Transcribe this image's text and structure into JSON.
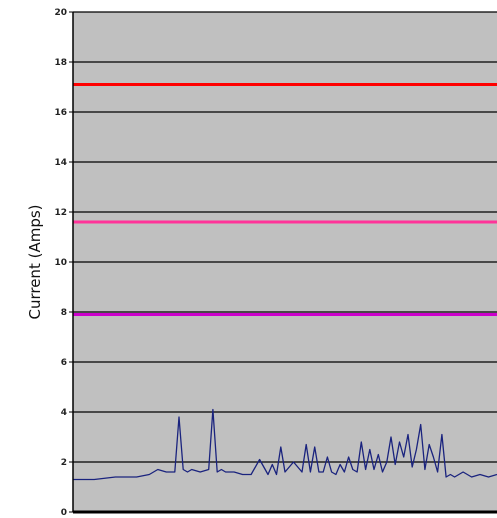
{
  "chart_data": {
    "type": "line",
    "title": "",
    "xlabel": "",
    "ylabel": "Current (Amps)",
    "ylim": [
      0,
      20
    ],
    "yticks": [
      "0",
      "2",
      "4",
      "6",
      "8",
      "10",
      "12",
      "14",
      "16",
      "18",
      "20"
    ],
    "ytick_values": [
      0,
      2,
      4,
      6,
      8,
      10,
      12,
      14,
      16,
      18,
      20
    ],
    "grid": true,
    "plot_background": "#c0c0c0",
    "reference_lines": [
      {
        "value": 17.1,
        "color": "#ff0000"
      },
      {
        "value": 11.6,
        "color": "#ff3399"
      },
      {
        "value": 7.9,
        "color": "#cc00cc"
      }
    ],
    "series": [
      {
        "color": "#1a237e",
        "x": [
          0,
          5,
          10,
          15,
          18,
          20,
          22,
          24,
          25,
          26,
          27,
          28,
          30,
          32,
          33,
          34,
          35,
          36,
          38,
          40,
          42,
          44,
          46,
          47,
          48,
          49,
          50,
          52,
          54,
          55,
          56,
          57,
          58,
          59,
          60,
          61,
          62,
          63,
          64,
          65,
          66,
          67,
          68,
          69,
          70,
          71,
          72,
          73,
          74,
          75,
          76,
          77,
          78,
          79,
          80,
          81,
          82,
          83,
          84,
          85,
          86,
          87,
          88,
          89,
          90,
          92,
          94,
          96,
          98,
          100
        ],
        "y": [
          1.3,
          1.3,
          1.4,
          1.4,
          1.5,
          1.7,
          1.6,
          1.6,
          3.8,
          1.7,
          1.6,
          1.7,
          1.6,
          1.7,
          4.1,
          1.6,
          1.7,
          1.6,
          1.6,
          1.5,
          1.5,
          2.1,
          1.5,
          1.9,
          1.5,
          2.6,
          1.6,
          2.0,
          1.6,
          2.7,
          1.6,
          2.6,
          1.6,
          1.6,
          2.2,
          1.6,
          1.5,
          1.9,
          1.6,
          2.2,
          1.7,
          1.6,
          2.8,
          1.7,
          2.5,
          1.7,
          2.3,
          1.6,
          2.0,
          3.0,
          1.9,
          2.8,
          2.2,
          3.1,
          1.8,
          2.5,
          3.5,
          1.7,
          2.7,
          2.2,
          1.6,
          3.1,
          1.4,
          1.5,
          1.4,
          1.6,
          1.4,
          1.5,
          1.4,
          1.5
        ]
      }
    ]
  }
}
